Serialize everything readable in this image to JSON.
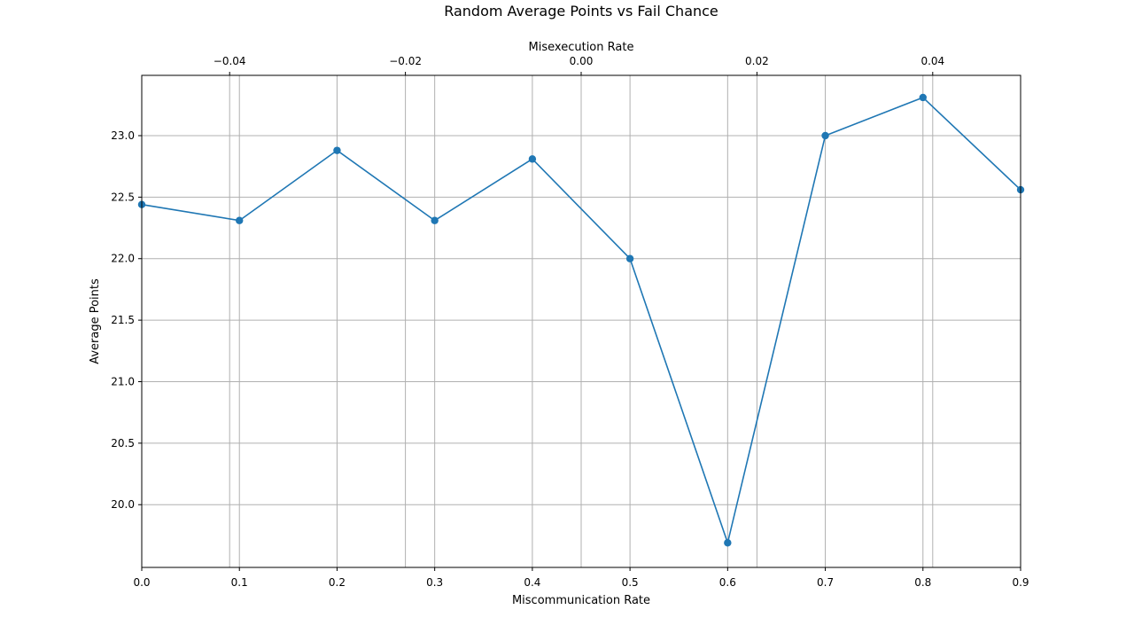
{
  "chart_data": {
    "type": "line",
    "title": "Random Average Points vs Fail Chance",
    "xlabel": "Miscommunication Rate",
    "ylabel": "Average Points",
    "x2label": "Misexecution Rate",
    "xlim": [
      0.0,
      0.9
    ],
    "ylim": [
      19.49,
      23.49
    ],
    "x2lim": [
      -0.05,
      0.05
    ],
    "grid": true,
    "line_color": "#1f77b4",
    "marker": "circle",
    "x_ticks": [
      0.0,
      0.1,
      0.2,
      0.3,
      0.4,
      0.5,
      0.6,
      0.7,
      0.8,
      0.9
    ],
    "x_tick_labels": [
      "0.0",
      "0.1",
      "0.2",
      "0.3",
      "0.4",
      "0.5",
      "0.6",
      "0.7",
      "0.8",
      "0.9"
    ],
    "y_ticks": [
      20.0,
      20.5,
      21.0,
      21.5,
      22.0,
      22.5,
      23.0
    ],
    "y_tick_labels": [
      "20.0",
      "20.5",
      "21.0",
      "21.5",
      "22.0",
      "22.5",
      "23.0"
    ],
    "x2_ticks": [
      -0.04,
      -0.02,
      0.0,
      0.02,
      0.04
    ],
    "x2_tick_labels": [
      "−0.04",
      "−0.02",
      "0.00",
      "0.02",
      "0.04"
    ],
    "series": [
      {
        "x": [
          0.0,
          0.1,
          0.2,
          0.3,
          0.4,
          0.5,
          0.6,
          0.7,
          0.8,
          0.9
        ],
        "values": [
          22.44,
          22.31,
          22.88,
          22.31,
          22.81,
          22.0,
          19.69,
          23.0,
          23.31,
          22.56
        ]
      }
    ]
  }
}
